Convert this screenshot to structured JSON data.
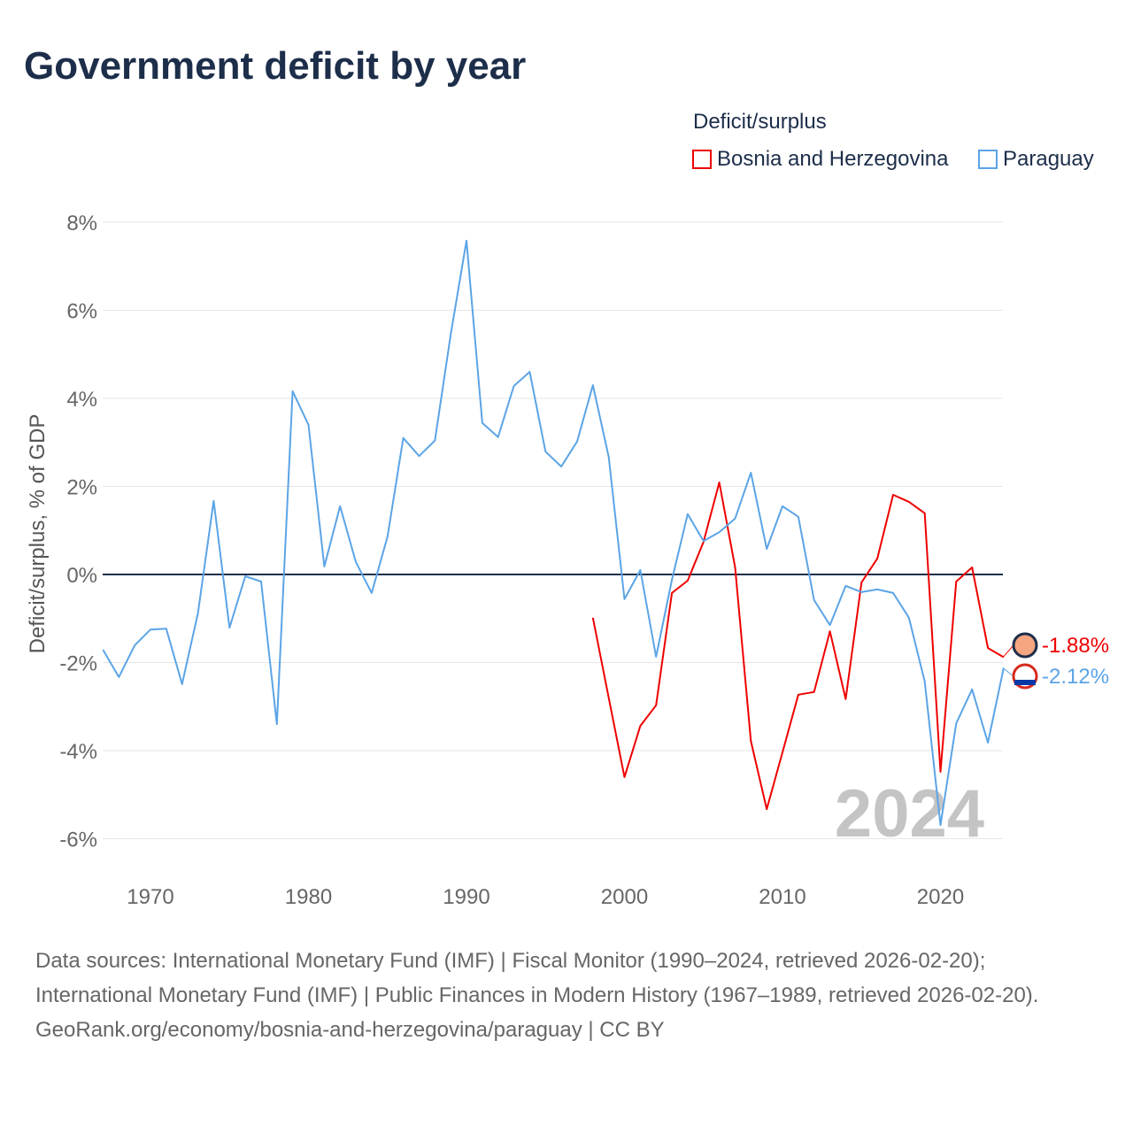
{
  "title": "Government deficit by year",
  "chart_data": {
    "type": "line",
    "title": "Government deficit by year",
    "ylabel": "Deficit/surplus, % of GDP",
    "xlabel": "",
    "legend_title": "Deficit/surplus",
    "legend_position": "top-right",
    "ylim": [
      -6.6,
      8.2
    ],
    "xlim": [
      1967,
      2024
    ],
    "grid": true,
    "y_ticks": [
      8,
      6,
      4,
      2,
      0,
      -2,
      -4,
      -6
    ],
    "y_tick_labels": [
      "8%",
      "6%",
      "4%",
      "2%",
      "0%",
      "-2%",
      "-4%",
      "-6%"
    ],
    "x_ticks": [
      1970,
      1980,
      1990,
      2000,
      2010,
      2020
    ],
    "x_tick_labels": [
      "1970",
      "1980",
      "1990",
      "2000",
      "2010",
      "2020"
    ],
    "year_watermark": "2024",
    "series": [
      {
        "name": "Bosnia and Herzegovina",
        "color": "#ee0000",
        "end_label": "-1.88%",
        "x": [
          1998,
          1999,
          2000,
          2001,
          2002,
          2003,
          2004,
          2005,
          2006,
          2007,
          2008,
          2009,
          2010,
          2011,
          2012,
          2013,
          2014,
          2015,
          2016,
          2017,
          2018,
          2019,
          2020,
          2021,
          2022,
          2023,
          2024
        ],
        "values": [
          -0.98,
          -2.8,
          -4.6,
          -3.44,
          -2.97,
          -0.42,
          -0.14,
          0.74,
          2.09,
          0.16,
          -3.78,
          -5.33,
          -4.04,
          -2.73,
          -2.67,
          -1.29,
          -2.83,
          -0.18,
          0.36,
          1.81,
          1.65,
          1.39,
          -4.48,
          -0.16,
          0.16,
          -1.67,
          -1.88
        ]
      },
      {
        "name": "Paraguay",
        "color": "#5ba4e6",
        "end_label": "-2.12%",
        "x": [
          1967,
          1968,
          1969,
          1970,
          1971,
          1972,
          1973,
          1974,
          1975,
          1976,
          1977,
          1978,
          1979,
          1980,
          1981,
          1982,
          1983,
          1984,
          1985,
          1986,
          1987,
          1988,
          1989,
          1990,
          1991,
          1992,
          1993,
          1994,
          1995,
          1996,
          1997,
          1998,
          1999,
          2000,
          2001,
          2002,
          2003,
          2004,
          2005,
          2006,
          2007,
          2008,
          2009,
          2010,
          2011,
          2012,
          2013,
          2014,
          2015,
          2016,
          2017,
          2018,
          2019,
          2020,
          2021,
          2022,
          2023,
          2024
        ],
        "values": [
          -1.71,
          -2.33,
          -1.61,
          -1.25,
          -1.23,
          -2.49,
          -0.88,
          1.67,
          -1.21,
          -0.04,
          -0.16,
          -3.4,
          4.16,
          3.4,
          0.18,
          1.55,
          0.28,
          -0.42,
          0.86,
          3.1,
          2.69,
          3.04,
          5.45,
          7.58,
          3.44,
          3.12,
          4.28,
          4.6,
          2.79,
          2.45,
          3.02,
          4.3,
          2.67,
          -0.56,
          0.1,
          -1.87,
          -0.12,
          1.37,
          0.76,
          0.96,
          1.27,
          2.31,
          0.58,
          1.55,
          1.31,
          -0.58,
          -1.15,
          -0.26,
          -0.4,
          -0.34,
          -0.42,
          -0.98,
          -2.43,
          -5.69,
          -3.38,
          -2.61,
          -3.82,
          -2.12
        ]
      }
    ]
  },
  "footer": {
    "sources": "Data sources: International Monetary Fund (IMF) | Fiscal Monitor (1990–2024, retrieved 2026-02-20); International Monetary Fund (IMF) | Public Finances in Modern History (1967–1989, retrieved 2026-02-20).",
    "link": "GeoRank.org/economy/bosnia-and-herzegovina/paraguay | CC BY"
  }
}
